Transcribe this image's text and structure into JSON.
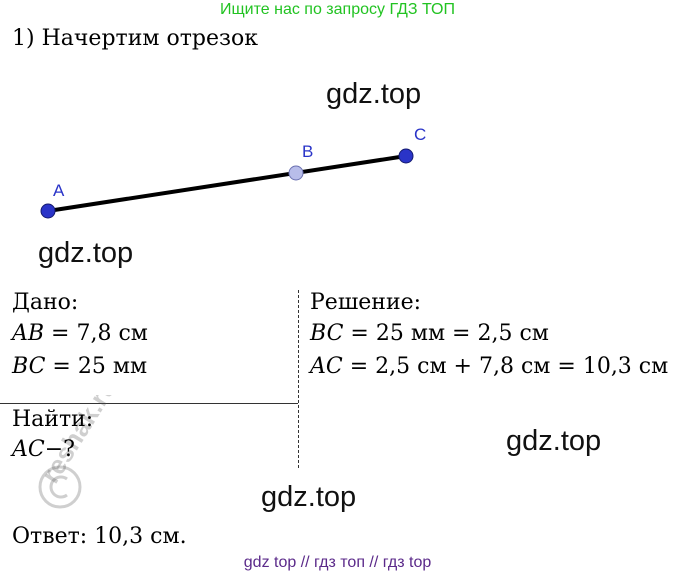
{
  "banner_top": "Ищите нас по запросу ГДЗ ТОП",
  "heading": "1) Начертим отрезок",
  "watermarks": [
    "gdz.top",
    "gdz.top",
    "gdz.top",
    "gdz.top"
  ],
  "diagram": {
    "point_labels": [
      "A",
      "B",
      "C"
    ],
    "colors": {
      "endpoint": "#2a34c8",
      "midpoint": "#b8bdea",
      "segment": "#000000"
    }
  },
  "given": {
    "label": "Дано:",
    "ab": {
      "var": "AB",
      "rest": " = 7,8 см"
    },
    "bc": {
      "var": "BC",
      "rest": " = 25 мм"
    }
  },
  "find": {
    "label": "Найти:",
    "var": "AC",
    "rest": "−?"
  },
  "solution": {
    "label": "Решение:",
    "line1": {
      "var": "BC",
      "rest": " = 25 мм = 2,5 см"
    },
    "line2": {
      "var": "AC",
      "rest": " = 2,5 см + 7,8 см = 10,3 см"
    }
  },
  "answer": "Ответ: 10,3 см.",
  "stamp_text": "reshak.ru",
  "banner_bottom": "gdz top  //  гдз топ  //  гдз top"
}
